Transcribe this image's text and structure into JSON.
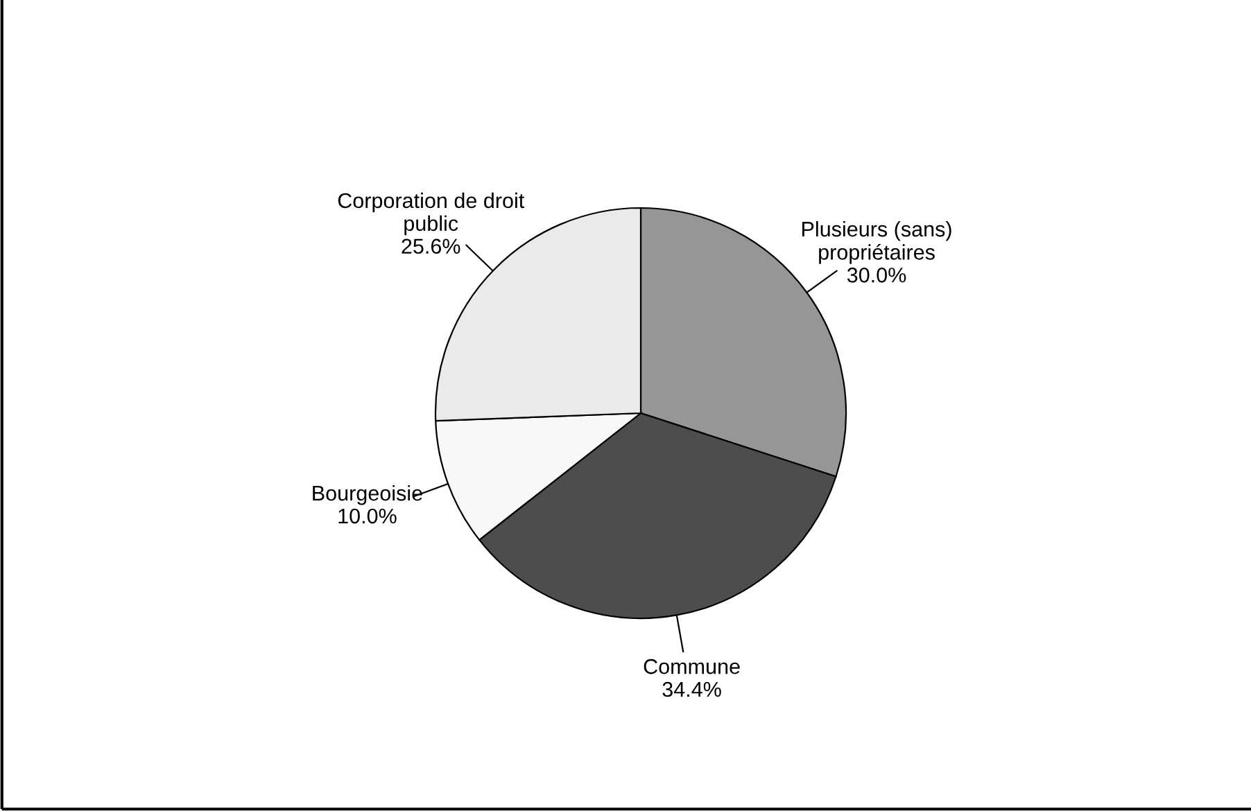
{
  "chart_data": {
    "type": "pie",
    "categories": [
      "Plusieurs (sans)\npropriétaires",
      "Commune",
      "Bourgeoisie",
      "Corporation de droit\npublic"
    ],
    "values": [
      30.0,
      34.4,
      10.0,
      25.6
    ],
    "colors": [
      "#969696",
      "#4d4d4d",
      "#f8f8f8",
      "#eaeaea"
    ],
    "value_labels": [
      "30.0%",
      "34.4%",
      "10.0%",
      "25.6%"
    ],
    "legend": false
  }
}
